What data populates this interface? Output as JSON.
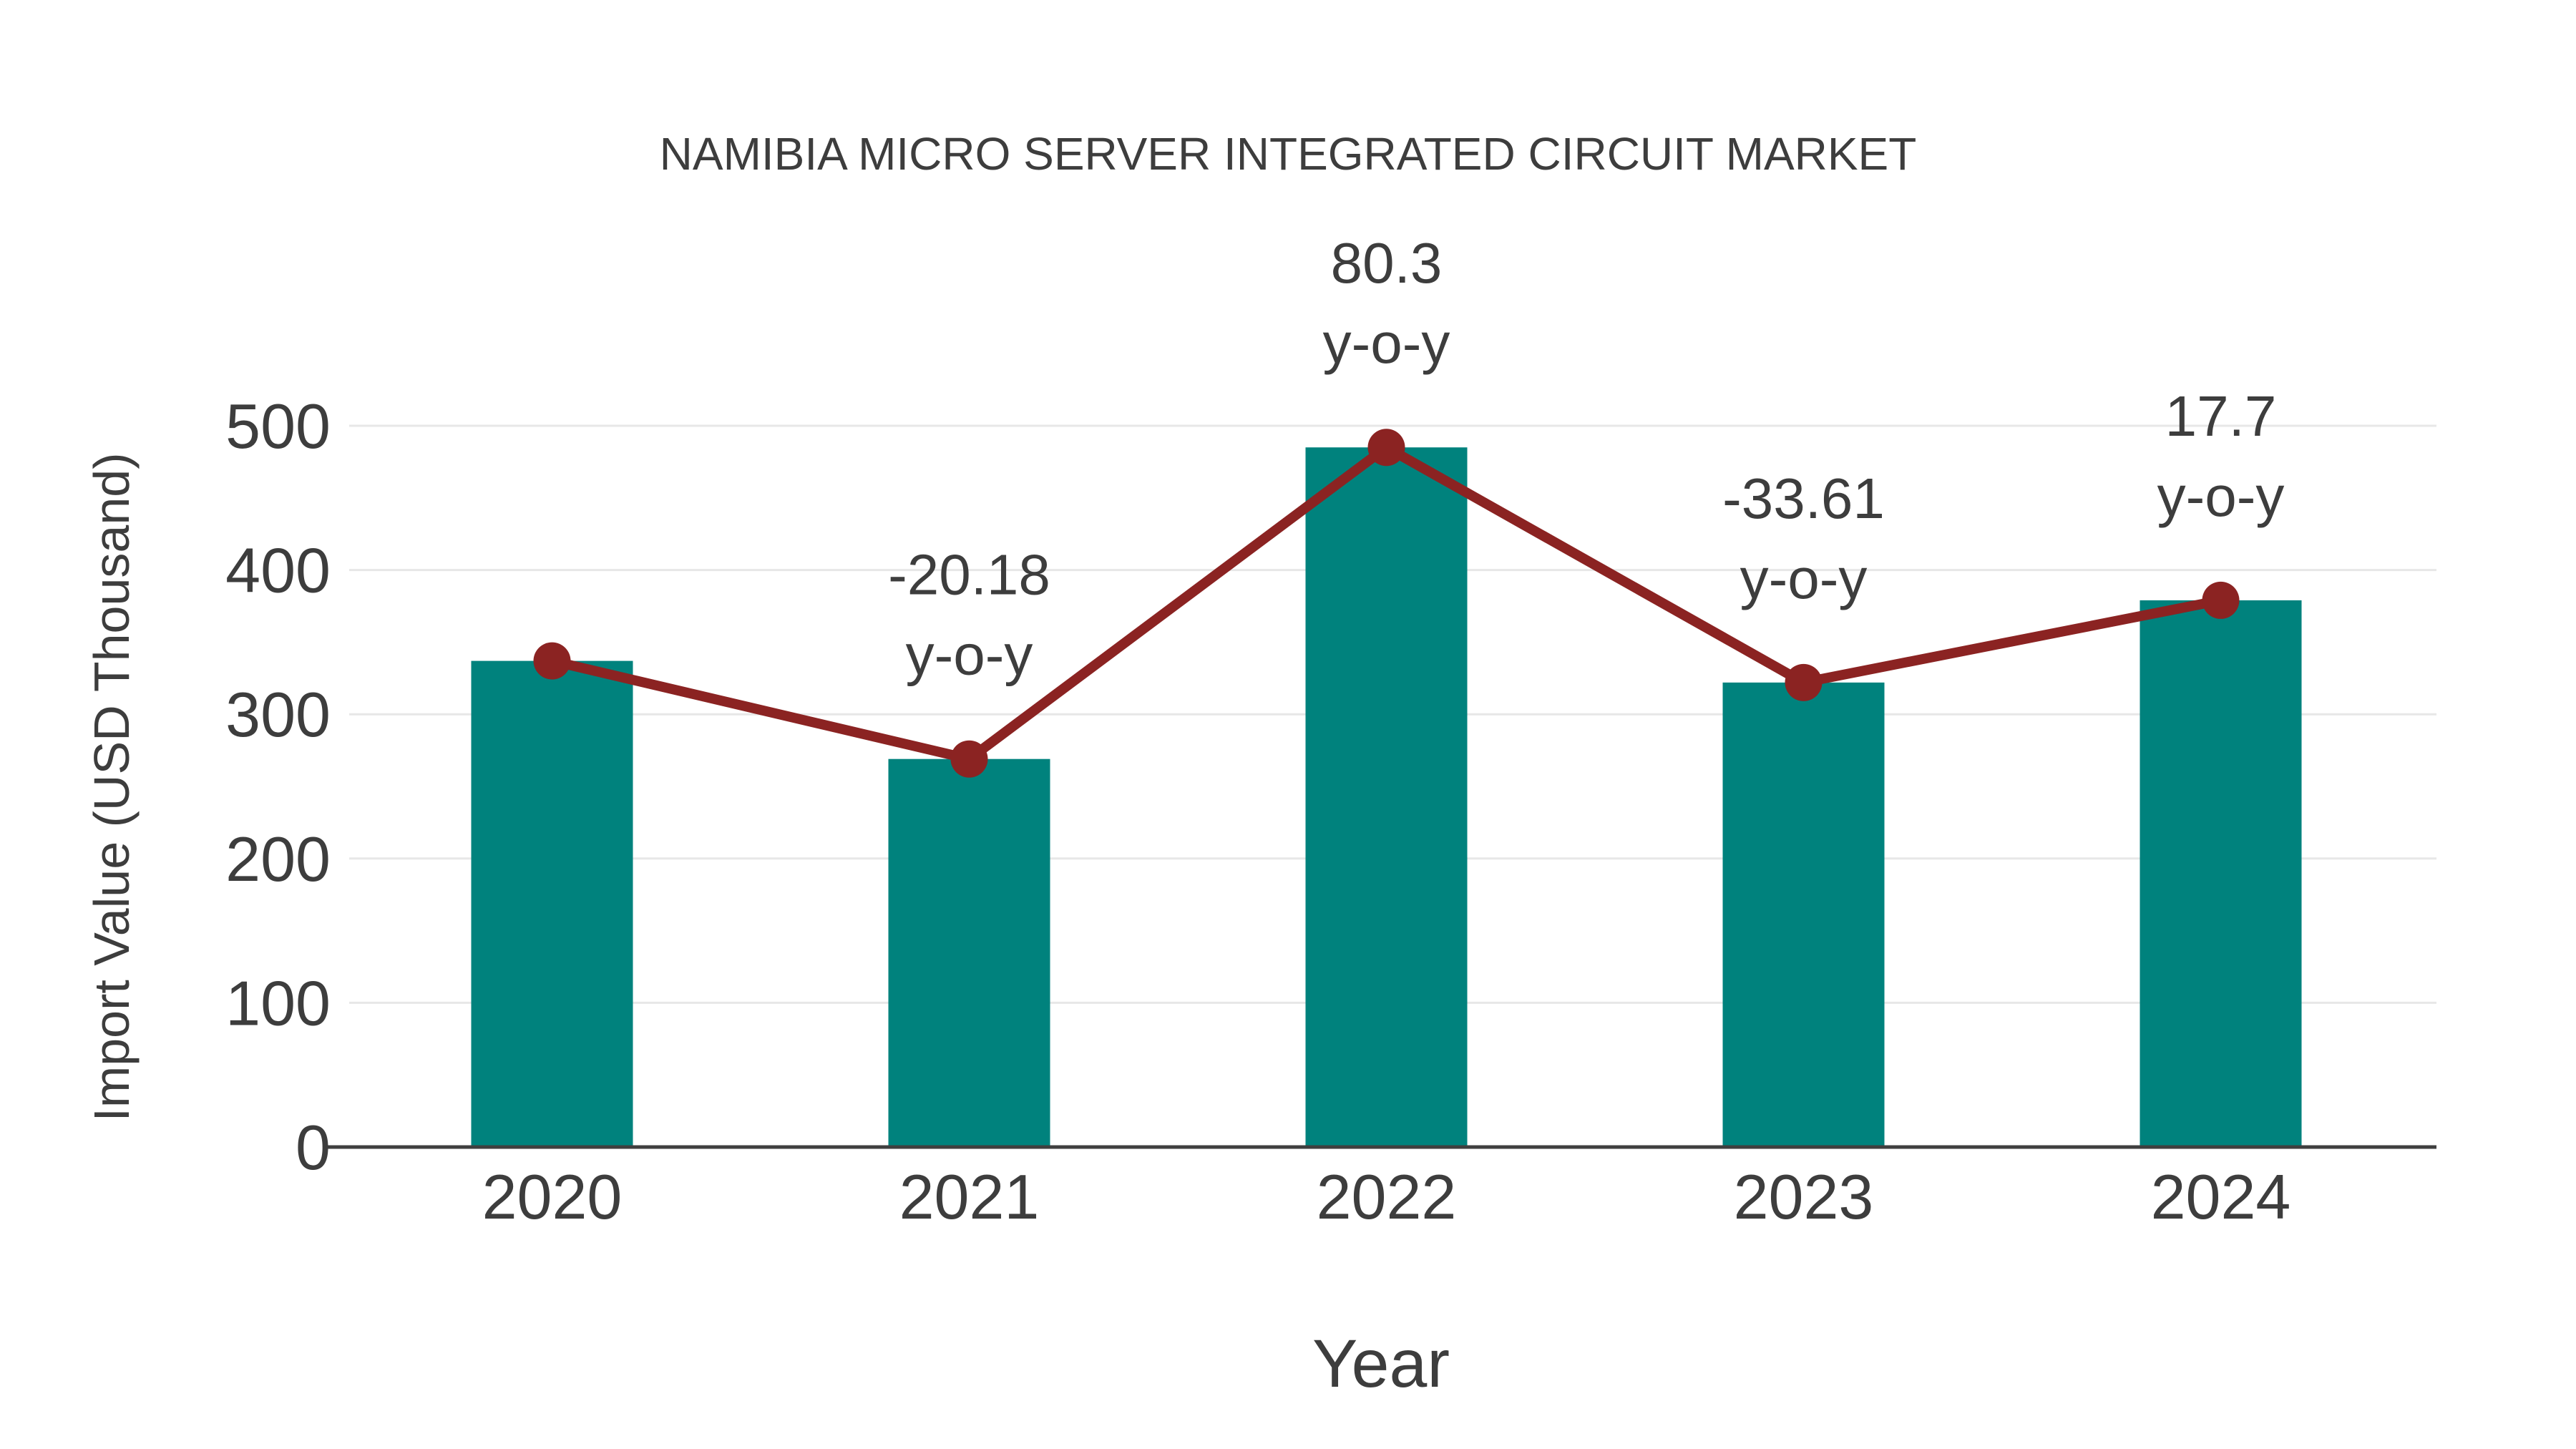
{
  "title": "NAMIBIA MICRO SERVER INTEGRATED CIRCUIT MARKET",
  "chart_data": {
    "type": "bar",
    "categories": [
      "2020",
      "2021",
      "2022",
      "2023",
      "2024"
    ],
    "series": [
      {
        "name": "Import Value",
        "type": "bar",
        "values": [
          337,
          269,
          485,
          322,
          379
        ]
      },
      {
        "name": "Import Value trend",
        "type": "line",
        "values": [
          337,
          269,
          485,
          322,
          379
        ]
      }
    ],
    "annotations": [
      {
        "category_index": 1,
        "line1": "-20.18",
        "line2": "y-o-y"
      },
      {
        "category_index": 2,
        "line1": "80.3",
        "line2": "y-o-y"
      },
      {
        "category_index": 3,
        "line1": "-33.61",
        "line2": "y-o-y"
      },
      {
        "category_index": 4,
        "line1": "17.7",
        "line2": "y-o-y"
      }
    ],
    "title": "NAMIBIA MICRO SERVER INTEGRATED CIRCUIT MARKET",
    "xlabel": "Year",
    "ylabel": "Import Value (USD Thousand)",
    "yticks": [
      0,
      100,
      200,
      300,
      400,
      500
    ],
    "ylim": [
      0,
      500
    ],
    "grid": true,
    "legend": "none",
    "colors": {
      "bar": "#00827d",
      "line": "#8b2322",
      "marker": "#8b2322",
      "text": "#3d3d3d",
      "grid": "#e7e7e7",
      "axis": "#3f3f3f",
      "background": "#ffffff"
    }
  }
}
